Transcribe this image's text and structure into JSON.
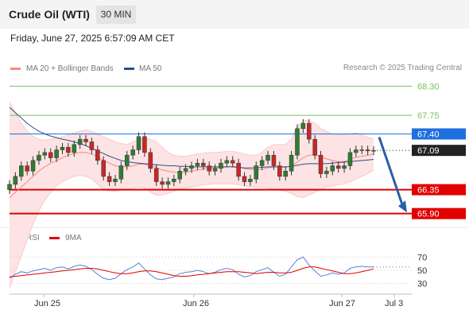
{
  "header": {
    "title": "Crude Oil (WTI)",
    "timeframe": "30 MIN"
  },
  "datetime": "Friday, June 27, 2025 6:57:09 AM CET",
  "legend": {
    "ma20_bb": {
      "label": "MA 20 + Bollinger Bands",
      "color": "#f28b82"
    },
    "ma50": {
      "label": "MA 50",
      "color": "#2a4f8f"
    }
  },
  "credit": "Research © 2025 Trading Central",
  "rsi_legend": {
    "rsi": {
      "label": "RSI",
      "color": "#5b7fd6"
    },
    "ma9": {
      "label": "9MA",
      "color": "#e00000"
    }
  },
  "chart_data": [
    {
      "type": "candlestick",
      "title": "Crude Oil (WTI)",
      "timeframe": "30 MIN",
      "x_labels": [
        "Jun 25",
        "Jun 26",
        "Jun 27",
        "Jul 3"
      ],
      "ylim": [
        65.7,
        68.5
      ],
      "levels": [
        {
          "value": 68.3,
          "label": "68.30",
          "kind": "target",
          "color": "#7cc25a"
        },
        {
          "value": 67.75,
          "label": "67.75",
          "kind": "target",
          "color": "#7cc25a"
        },
        {
          "value": 67.4,
          "label": "67.40",
          "kind": "pivot",
          "color": "#1f6fe0"
        },
        {
          "value": 67.09,
          "label": "67.09",
          "kind": "last",
          "color": "#222222"
        },
        {
          "value": 66.35,
          "label": "66.35",
          "kind": "support",
          "color": "#e00000"
        },
        {
          "value": 65.9,
          "label": "65.90",
          "kind": "support",
          "color": "#e00000"
        }
      ],
      "closes": [
        66.45,
        66.6,
        66.8,
        66.7,
        66.9,
        67.0,
        67.05,
        66.95,
        67.1,
        67.15,
        67.05,
        67.2,
        67.3,
        67.25,
        67.1,
        66.9,
        66.6,
        66.5,
        66.55,
        66.8,
        67.0,
        67.1,
        67.35,
        67.05,
        66.75,
        66.5,
        66.45,
        66.5,
        66.55,
        66.7,
        66.75,
        66.8,
        66.85,
        66.8,
        66.7,
        66.75,
        66.85,
        66.9,
        66.85,
        66.6,
        66.5,
        66.55,
        66.8,
        66.9,
        67.0,
        66.8,
        66.6,
        66.7,
        67.0,
        67.5,
        67.6,
        67.3,
        67.0,
        66.65,
        66.7,
        66.8,
        66.75,
        66.8,
        67.05,
        67.1,
        67.1,
        67.08,
        67.09
      ],
      "ma20": [
        66.2,
        66.3,
        66.4,
        66.5,
        66.6,
        66.7,
        66.78,
        66.85,
        66.9,
        66.95,
        67.0,
        67.03,
        67.05,
        67.05,
        67.02,
        66.97,
        66.9,
        66.85,
        66.8,
        66.78,
        66.78,
        66.8,
        66.83,
        66.83,
        66.8,
        66.77,
        66.72,
        66.7,
        66.68,
        66.67,
        66.68,
        66.7,
        66.72,
        66.74,
        66.75,
        66.76,
        66.77,
        66.78,
        66.79,
        66.78,
        66.75,
        66.73,
        66.72,
        66.73,
        66.76,
        66.78,
        66.78,
        66.77,
        66.8,
        66.87,
        66.95,
        67.0,
        67.0,
        66.97,
        66.93,
        66.9,
        66.88,
        66.88,
        66.92,
        66.96,
        66.98,
        67.0,
        67.02
      ],
      "bb_upper": [
        68.0,
        67.8,
        67.6,
        67.45,
        67.35,
        67.3,
        67.28,
        67.3,
        67.32,
        67.35,
        67.38,
        67.42,
        67.45,
        67.48,
        67.45,
        67.4,
        67.35,
        67.3,
        67.25,
        67.22,
        67.2,
        67.25,
        67.3,
        67.32,
        67.3,
        67.25,
        67.15,
        67.05,
        67.0,
        66.98,
        66.98,
        67.0,
        67.02,
        67.04,
        67.05,
        67.05,
        67.06,
        67.07,
        67.07,
        67.05,
        67.02,
        67.0,
        67.0,
        67.05,
        67.15,
        67.2,
        67.2,
        67.2,
        67.3,
        67.55,
        67.65,
        67.65,
        67.6,
        67.5,
        67.45,
        67.4,
        67.38,
        67.38,
        67.4,
        67.42,
        67.38,
        67.34,
        67.3
      ],
      "bb_lower": [
        64.5,
        64.8,
        65.1,
        65.4,
        65.7,
        65.95,
        66.15,
        66.3,
        66.42,
        66.5,
        66.55,
        66.6,
        66.62,
        66.6,
        66.55,
        66.45,
        66.35,
        66.32,
        66.32,
        66.34,
        66.36,
        66.38,
        66.4,
        66.38,
        66.3,
        66.25,
        66.25,
        66.28,
        66.32,
        66.36,
        66.38,
        66.4,
        66.42,
        66.44,
        66.45,
        66.46,
        66.46,
        66.46,
        66.46,
        66.44,
        66.42,
        66.4,
        66.4,
        66.4,
        66.38,
        66.36,
        66.34,
        66.32,
        66.28,
        66.22,
        66.2,
        66.25,
        66.3,
        66.35,
        66.4,
        66.42,
        66.44,
        66.46,
        66.5,
        66.55,
        66.6,
        66.65,
        66.72
      ],
      "ma50": [
        67.9,
        67.8,
        67.7,
        67.6,
        67.52,
        67.45,
        67.4,
        67.36,
        67.33,
        67.3,
        67.28,
        67.25,
        67.22,
        67.18,
        67.13,
        67.08,
        67.03,
        66.98,
        66.94,
        66.9,
        66.88,
        66.86,
        66.85,
        66.84,
        66.83,
        66.82,
        66.81,
        66.8,
        66.8,
        66.79,
        66.79,
        66.78,
        66.78,
        66.78,
        66.78,
        66.78,
        66.78,
        66.78,
        66.78,
        66.77,
        66.76,
        66.76,
        66.76,
        66.77,
        66.78,
        66.78,
        66.78,
        66.78,
        66.79,
        66.81,
        66.83,
        66.84,
        66.84,
        66.84,
        66.84,
        66.85,
        66.86,
        66.87,
        66.88,
        66.89,
        66.9,
        66.91,
        66.92
      ]
    },
    {
      "type": "line",
      "title": "RSI",
      "ylim": [
        20,
        80
      ],
      "yticks": [
        30,
        50,
        70
      ],
      "series": [
        {
          "name": "RSI",
          "color": "#5b7fd6",
          "values": [
            38,
            44,
            48,
            46,
            49,
            51,
            53,
            50,
            54,
            55,
            52,
            56,
            58,
            56,
            51,
            44,
            38,
            36,
            38,
            45,
            51,
            55,
            61,
            52,
            43,
            37,
            36,
            38,
            40,
            45,
            47,
            48,
            50,
            48,
            45,
            47,
            51,
            53,
            51,
            44,
            40,
            42,
            48,
            51,
            54,
            47,
            41,
            44,
            55,
            66,
            70,
            58,
            49,
            41,
            43,
            46,
            44,
            46,
            53,
            55,
            56,
            55,
            55
          ]
        },
        {
          "name": "9MA",
          "color": "#e00000",
          "values": [
            40,
            41,
            42,
            43,
            44,
            45,
            46,
            47,
            48,
            49,
            50,
            51,
            52,
            53,
            53,
            52,
            50,
            48,
            46,
            45,
            45,
            46,
            48,
            49,
            49,
            48,
            46,
            44,
            42,
            41,
            41,
            42,
            43,
            44,
            45,
            46,
            47,
            48,
            48,
            48,
            47,
            46,
            45,
            46,
            47,
            47,
            46,
            46,
            47,
            50,
            53,
            55,
            55,
            53,
            51,
            49,
            47,
            45,
            45,
            46,
            48,
            50,
            52
          ]
        }
      ]
    }
  ]
}
